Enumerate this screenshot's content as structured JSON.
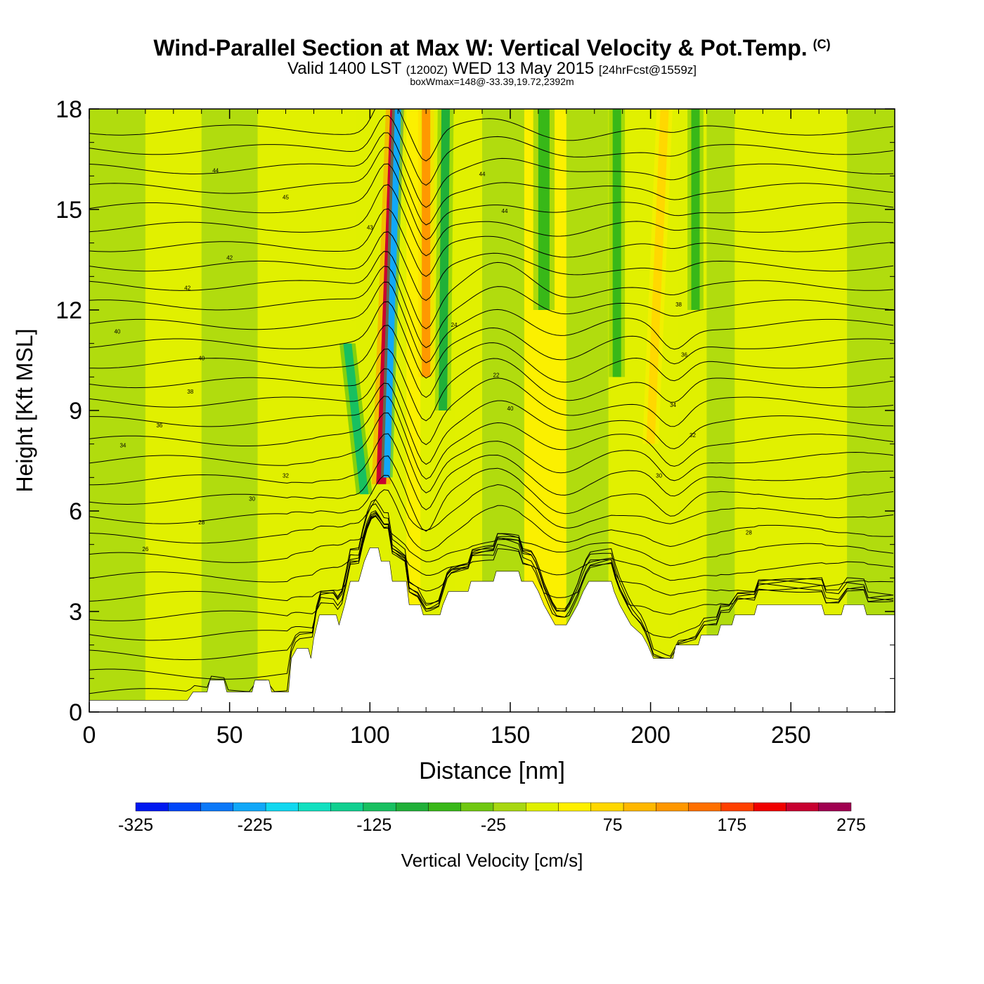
{
  "header": {
    "title": "Wind-Parallel Section at Max W: Vertical Velocity & Pot.Temp.",
    "copyright_mark": "(C)",
    "valid_main": "Valid 1400 LST",
    "valid_z": "(1200Z)",
    "valid_date": "WED 13 May 2015",
    "forecast": "[24hrFcst@1559z]",
    "box_info": "boxWmax=148@-33.39,19.72,2392m"
  },
  "chart_data": {
    "type": "heatmap",
    "xlabel": "Distance [nm]",
    "ylabel": "Height [Kft MSL]",
    "xlim": [
      0,
      287
    ],
    "ylim": [
      0,
      18
    ],
    "x_ticks": [
      0,
      50,
      100,
      150,
      200,
      250
    ],
    "y_ticks": [
      0,
      3,
      6,
      9,
      12,
      15,
      18
    ],
    "colorbar": {
      "label": "Vertical Velocity [cm/s]",
      "tick_labels": [
        "-325",
        "-225",
        "-125",
        "-25",
        "75",
        "175",
        "275"
      ],
      "tick_values": [
        -325,
        -225,
        -125,
        -25,
        75,
        175,
        275
      ],
      "range": [
        -325,
        275
      ],
      "colors": [
        "#0018f0",
        "#0046f8",
        "#0a78f8",
        "#10a8f8",
        "#10d8f0",
        "#10e0c0",
        "#10d090",
        "#18c060",
        "#20b038",
        "#38b818",
        "#70c810",
        "#a8d810",
        "#e0f000",
        "#fff000",
        "#ffd800",
        "#ffb800",
        "#ff9800",
        "#ff7000",
        "#ff4000",
        "#f00000",
        "#c80030",
        "#a00050"
      ]
    },
    "terrain_kft": [
      [
        0,
        0.35
      ],
      [
        10,
        0.35
      ],
      [
        20,
        0.35
      ],
      [
        30,
        0.35
      ],
      [
        35,
        0.35
      ],
      [
        37,
        0.6
      ],
      [
        42,
        0.6
      ],
      [
        43,
        0.95
      ],
      [
        48,
        0.95
      ],
      [
        49,
        0.6
      ],
      [
        58,
        0.6
      ],
      [
        59,
        0.95
      ],
      [
        64,
        0.95
      ],
      [
        65,
        0.6
      ],
      [
        71,
        0.6
      ],
      [
        72,
        1.6
      ],
      [
        74,
        1.9
      ],
      [
        78,
        1.9
      ],
      [
        79,
        1.6
      ],
      [
        80,
        2.2
      ],
      [
        82,
        2.9
      ],
      [
        88,
        2.9
      ],
      [
        89,
        2.6
      ],
      [
        91,
        3.2
      ],
      [
        93,
        3.9
      ],
      [
        96,
        3.9
      ],
      [
        98,
        4.5
      ],
      [
        100,
        4.9
      ],
      [
        103,
        4.9
      ],
      [
        104,
        4.5
      ],
      [
        107,
        4.5
      ],
      [
        108,
        3.9
      ],
      [
        113,
        3.9
      ],
      [
        114,
        3.2
      ],
      [
        118,
        3.2
      ],
      [
        119,
        2.9
      ],
      [
        125,
        2.9
      ],
      [
        126,
        3.2
      ],
      [
        128,
        3.6
      ],
      [
        135,
        3.6
      ],
      [
        136,
        3.9
      ],
      [
        144,
        3.9
      ],
      [
        145,
        4.2
      ],
      [
        153,
        4.2
      ],
      [
        154,
        3.9
      ],
      [
        158,
        3.9
      ],
      [
        160,
        3.6
      ],
      [
        162,
        3.2
      ],
      [
        164,
        2.9
      ],
      [
        166,
        2.6
      ],
      [
        170,
        2.6
      ],
      [
        172,
        2.9
      ],
      [
        174,
        3.2
      ],
      [
        176,
        3.6
      ],
      [
        178,
        3.9
      ],
      [
        186,
        3.9
      ],
      [
        187,
        3.6
      ],
      [
        189,
        3.2
      ],
      [
        191,
        2.9
      ],
      [
        193,
        2.6
      ],
      [
        197,
        2.3
      ],
      [
        199,
        2.0
      ],
      [
        201,
        1.6
      ],
      [
        208,
        1.6
      ],
      [
        209,
        2.0
      ],
      [
        217,
        2.0
      ],
      [
        218,
        2.3
      ],
      [
        224,
        2.3
      ],
      [
        225,
        2.6
      ],
      [
        229,
        2.6
      ],
      [
        230,
        2.9
      ],
      [
        237,
        2.9
      ],
      [
        238,
        3.2
      ],
      [
        261,
        3.2
      ],
      [
        262,
        2.9
      ],
      [
        268,
        2.9
      ],
      [
        269,
        3.2
      ],
      [
        276,
        3.2
      ],
      [
        277,
        2.9
      ],
      [
        287,
        2.9
      ]
    ],
    "theta_labels": [
      "44",
      "45",
      "44",
      "44",
      "43",
      "42",
      "42",
      "40",
      "40",
      "38",
      "36",
      "34",
      "32",
      "30",
      "28",
      "26",
      "24",
      "22",
      "40",
      "38",
      "36",
      "34",
      "32",
      "30",
      "28"
    ],
    "features": [
      {
        "kind": "updraft",
        "w": 225,
        "x_base": 104,
        "y_base": 6.8,
        "x_top": 109,
        "y_top": 18,
        "width_nm": 3.5
      },
      {
        "kind": "downdraft",
        "w": -240,
        "x_base": 106,
        "y_base": 7.0,
        "x_top": 110,
        "y_top": 18,
        "width_nm": 2.2
      },
      {
        "kind": "updraft",
        "w": 120,
        "x_base": 120,
        "y_base": 10,
        "x_top": 120,
        "y_top": 18,
        "width_nm": 3
      },
      {
        "kind": "downdraft",
        "w": -110,
        "x_base": 98,
        "y_base": 6.5,
        "x_top": 92,
        "y_top": 11,
        "width_nm": 3
      },
      {
        "kind": "downdraft",
        "w": -80,
        "x_base": 126,
        "y_base": 9,
        "x_top": 127,
        "y_top": 18,
        "width_nm": 3
      },
      {
        "kind": "downdraft",
        "w": -70,
        "x_base": 162,
        "y_base": 12,
        "x_top": 162,
        "y_top": 18,
        "width_nm": 4
      },
      {
        "kind": "downdraft",
        "w": -60,
        "x_base": 188,
        "y_base": 10,
        "x_top": 188,
        "y_top": 18,
        "width_nm": 3
      },
      {
        "kind": "downdraft",
        "w": -60,
        "x_base": 216,
        "y_base": 12,
        "x_top": 216,
        "y_top": 18,
        "width_nm": 3
      },
      {
        "kind": "updraft",
        "w": 80,
        "x_base": 200,
        "y_base": 8,
        "x_top": 205,
        "y_top": 18,
        "width_nm": 3
      }
    ]
  }
}
